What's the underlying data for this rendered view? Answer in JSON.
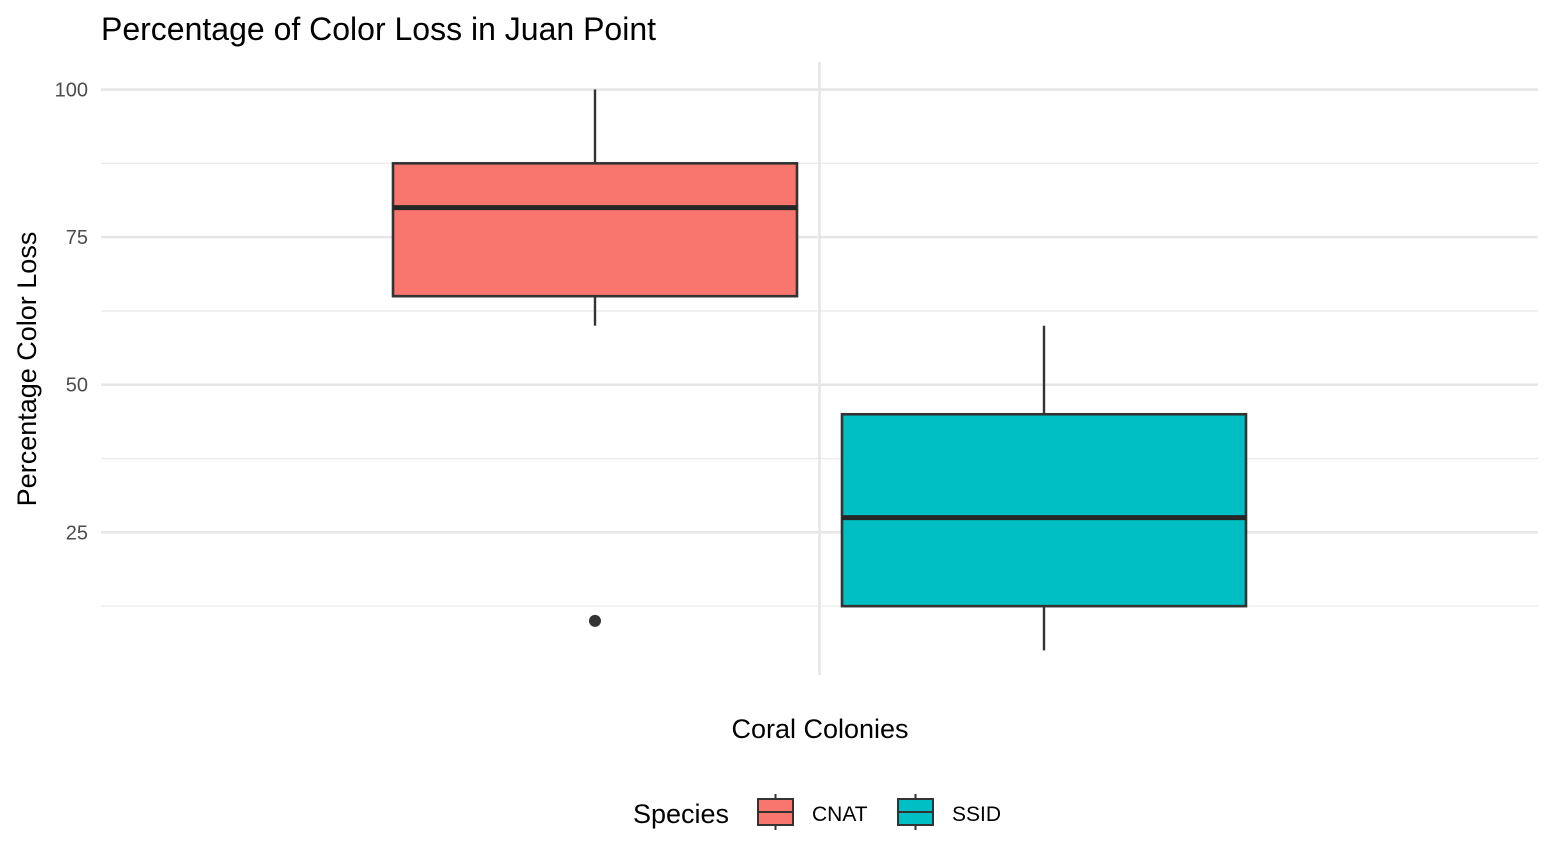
{
  "chart_data": {
    "type": "box",
    "title": "Percentage of Color Loss in Juan Point",
    "xlabel": "Coral Colonies",
    "ylabel": "Percentage Color Loss",
    "y_ticks": [
      25,
      50,
      75,
      100
    ],
    "ylim": [
      0.5,
      105
    ],
    "grid": true,
    "legend": {
      "title": "Species",
      "position": "bottom"
    },
    "series": [
      {
        "name": "CNAT",
        "color": "#F8766D",
        "whisker_low": 60,
        "q1": 65,
        "median": 80,
        "q3": 87.5,
        "whisker_high": 100,
        "outliers": [
          10
        ]
      },
      {
        "name": "SSID",
        "color": "#00BFC4",
        "whisker_low": 5,
        "q1": 12.5,
        "median": 27.5,
        "q3": 45,
        "whisker_high": 60,
        "outliers": []
      }
    ]
  }
}
